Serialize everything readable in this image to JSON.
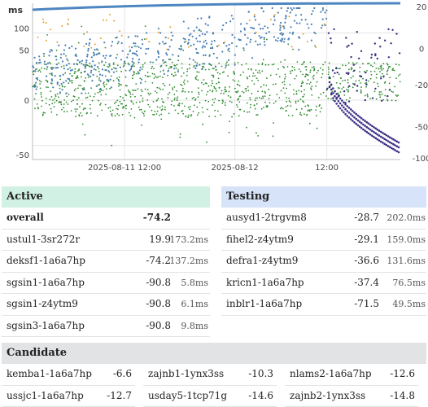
{
  "chart_data": {
    "type": "scatter",
    "y_left_label": "ms",
    "y_left_ticks": [
      "100",
      "50",
      "0",
      "-50"
    ],
    "y_right_ticks": [
      "20",
      "0",
      "-20",
      "-50",
      "-100"
    ],
    "x_ticks": [
      "2025-08-11 12:00",
      "2025-08-12",
      "12:00"
    ],
    "colors": {
      "blue": "#4a7fb5",
      "green": "#2e8b2e",
      "purple": "#3b2f86",
      "orange": "#e3a02b",
      "top": "#4d86c0"
    },
    "grid": true
  },
  "active": {
    "title": "Active",
    "rows": [
      {
        "name": "overall",
        "offset": "-74.2",
        "rtt": ""
      },
      {
        "name": "ustul1-3sr272r",
        "offset": "19.9",
        "rtt": "173.2ms"
      },
      {
        "name": "deksf1-1a6a7hp",
        "offset": "-74.2",
        "rtt": "137.2ms"
      },
      {
        "name": "sgsin1-1a6a7hp",
        "offset": "-90.8",
        "rtt": "5.8ms"
      },
      {
        "name": "sgsin1-z4ytm9",
        "offset": "-90.8",
        "rtt": "6.1ms"
      },
      {
        "name": "sgsin3-1a6a7hp",
        "offset": "-90.8",
        "rtt": "9.8ms"
      }
    ]
  },
  "testing": {
    "title": "Testing",
    "rows": [
      {
        "name": "ausyd1-2trgvm8",
        "offset": "-28.7",
        "rtt": "202.0ms"
      },
      {
        "name": "fihel2-z4ytm9",
        "offset": "-29.1",
        "rtt": "159.0ms"
      },
      {
        "name": "defra1-z4ytm9",
        "offset": "-36.6",
        "rtt": "131.6ms"
      },
      {
        "name": "kricn1-1a6a7hp",
        "offset": "-37.4",
        "rtt": "76.5ms"
      },
      {
        "name": "inblr1-1a6a7hp",
        "offset": "-71.5",
        "rtt": "49.5ms"
      }
    ]
  },
  "candidate": {
    "title": "Candidate",
    "rows": [
      {
        "name": "kemba1-1a6a7hp",
        "offset": "-6.6"
      },
      {
        "name": "zajnb1-1ynx3ss",
        "offset": "-10.3"
      },
      {
        "name": "nlams2-1a6a7hp",
        "offset": "-12.6"
      },
      {
        "name": "ussjc1-1a6a7hp",
        "offset": "-12.7"
      },
      {
        "name": "usday5-1tcp71g",
        "offset": "-14.6"
      },
      {
        "name": "zajnb2-1ynx3ss",
        "offset": "-14.8"
      }
    ]
  }
}
